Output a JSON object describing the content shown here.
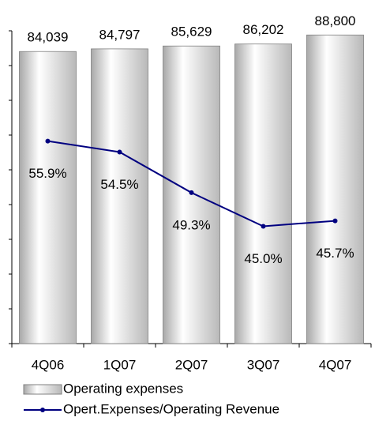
{
  "chart_data": {
    "type": "bar-line",
    "categories": [
      "4Q06",
      "1Q07",
      "2Q07",
      "3Q07",
      "4Q07"
    ],
    "series": [
      {
        "name": "Operating expenses",
        "type": "bar",
        "color": "#b0b0b0",
        "values": [
          84039,
          84797,
          85629,
          86202,
          88800
        ],
        "value_labels": [
          "84,039",
          "84,797",
          "85,629",
          "86,202",
          "88,800"
        ]
      },
      {
        "name": "Opert.Expenses/Operating Revenue",
        "type": "line",
        "axis": "y2",
        "color": "#000080",
        "values": [
          55.9,
          54.5,
          49.3,
          45.0,
          45.7
        ],
        "value_labels": [
          "55.9%",
          "54.5%",
          "49.3%",
          "45.0%",
          "45.7%"
        ]
      }
    ],
    "ylim": [
      0,
      90000
    ],
    "yticks": [
      0,
      10000,
      20000,
      30000,
      40000,
      50000,
      60000,
      70000,
      80000,
      90000
    ],
    "y2lim": [
      30,
      70
    ]
  }
}
